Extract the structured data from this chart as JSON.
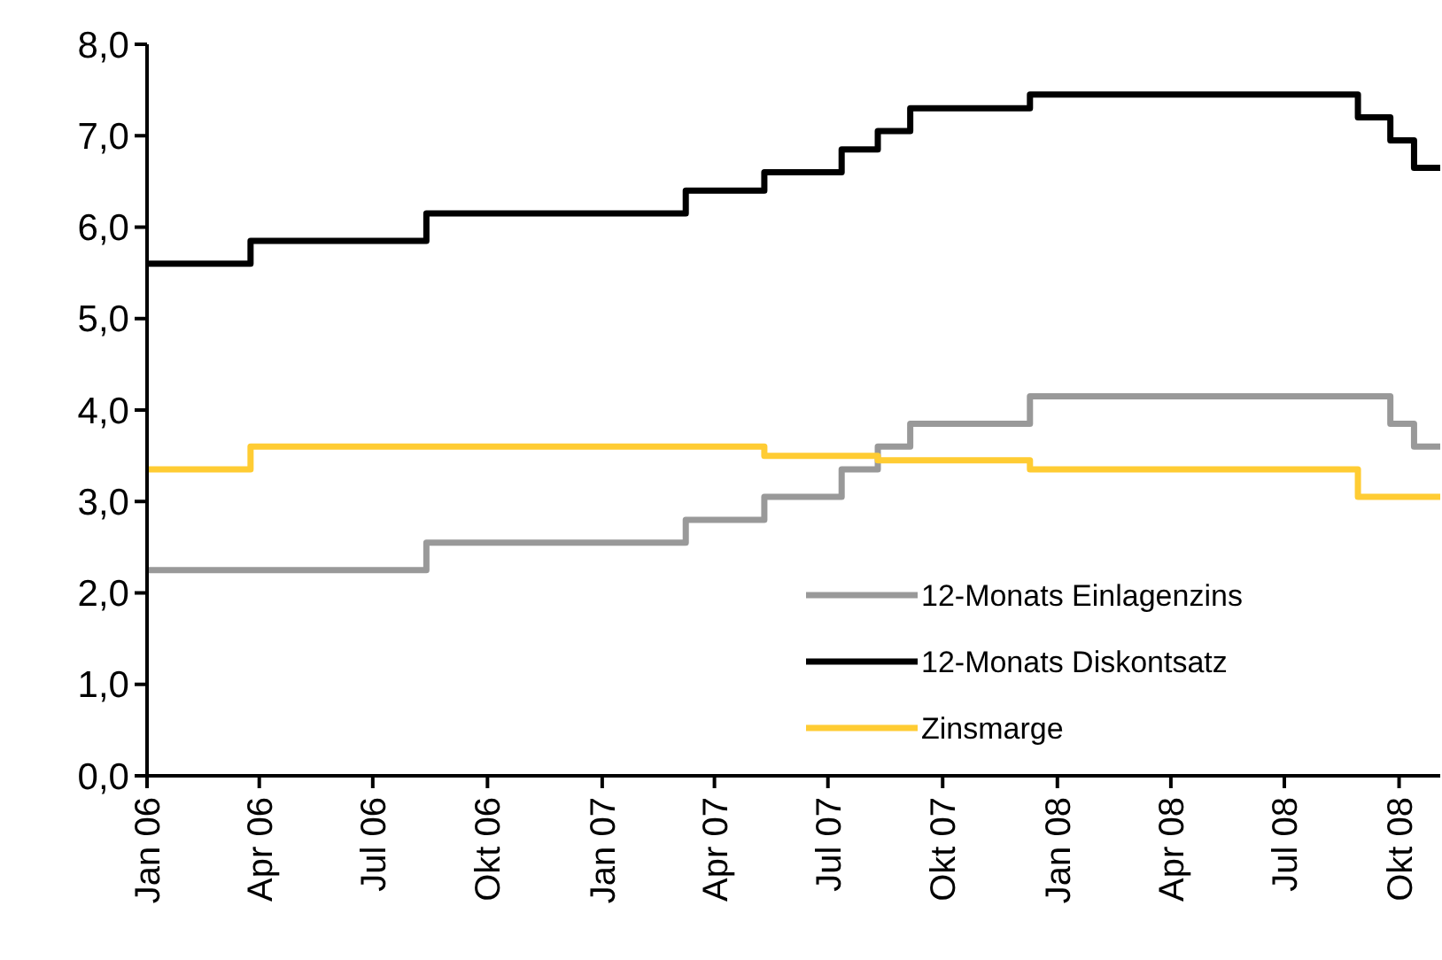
{
  "chart_data": {
    "type": "step",
    "xlim": [
      "2006-01-01",
      "2008-11-03"
    ],
    "ylim": [
      0,
      8
    ],
    "xticks": [
      {
        "value": "2006-01-01",
        "label": "Jan 06"
      },
      {
        "value": "2006-04-01",
        "label": "Apr 06"
      },
      {
        "value": "2006-07-01",
        "label": "Jul 06"
      },
      {
        "value": "2006-10-01",
        "label": "Okt 06"
      },
      {
        "value": "2007-01-01",
        "label": "Jan 07"
      },
      {
        "value": "2007-04-01",
        "label": "Apr 07"
      },
      {
        "value": "2007-07-01",
        "label": "Jul 07"
      },
      {
        "value": "2007-10-01",
        "label": "Okt 07"
      },
      {
        "value": "2008-01-01",
        "label": "Jan 08"
      },
      {
        "value": "2008-04-01",
        "label": "Apr 08"
      },
      {
        "value": "2008-07-01",
        "label": "Jul 08"
      },
      {
        "value": "2008-10-01",
        "label": "Okt 08"
      }
    ],
    "yticks": [
      {
        "value": 0,
        "label": "0,0"
      },
      {
        "value": 1,
        "label": "1,0"
      },
      {
        "value": 2,
        "label": "2,0"
      },
      {
        "value": 3,
        "label": "3,0"
      },
      {
        "value": 4,
        "label": "4,0"
      },
      {
        "value": 5,
        "label": "5,0"
      },
      {
        "value": 6,
        "label": "6,0"
      },
      {
        "value": 7,
        "label": "7,0"
      },
      {
        "value": 8,
        "label": "8,0"
      }
    ],
    "grid": false,
    "legend": "bottom right",
    "line_style": "solid",
    "marker": "none",
    "series": [
      {
        "name": "12-Monats Einlagenzins",
        "color": "#999999",
        "x": [
          "2006-01-01",
          "2006-08-13",
          "2007-03-09",
          "2007-05-11",
          "2007-07-12",
          "2007-08-10",
          "2007-09-05",
          "2007-12-10",
          "2008-09-24",
          "2008-10-13",
          "2008-11-03"
        ],
        "values": [
          2.25,
          2.55,
          2.8,
          3.05,
          3.35,
          3.6,
          3.85,
          4.15,
          3.85,
          3.6,
          3.6
        ]
      },
      {
        "name": "12-Monats Diskontsatz",
        "color": "#000000",
        "x": [
          "2006-01-01",
          "2006-03-25",
          "2006-08-13",
          "2007-03-09",
          "2007-05-11",
          "2007-07-12",
          "2007-08-10",
          "2007-09-05",
          "2007-12-10",
          "2008-08-29",
          "2008-09-24",
          "2008-10-13",
          "2008-11-03"
        ],
        "values": [
          5.6,
          5.85,
          6.15,
          6.4,
          6.6,
          6.85,
          7.05,
          7.3,
          7.45,
          7.2,
          6.95,
          6.65,
          6.65
        ]
      },
      {
        "name": "Zinsmarge",
        "color": "#ffcc33",
        "x": [
          "2006-01-01",
          "2006-03-25",
          "2007-05-11",
          "2007-08-10",
          "2007-12-10",
          "2008-08-29",
          "2008-11-03"
        ],
        "values": [
          3.35,
          3.6,
          3.5,
          3.45,
          3.35,
          3.05,
          3.05
        ]
      }
    ]
  }
}
